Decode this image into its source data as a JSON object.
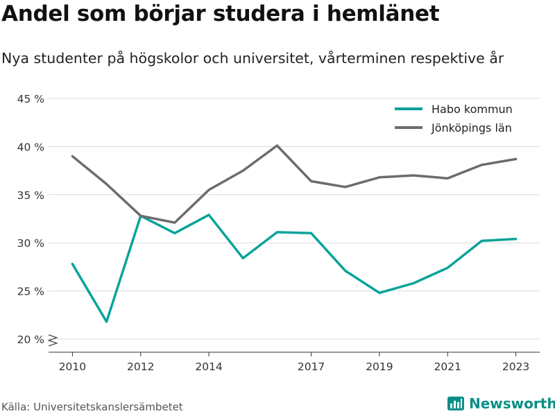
{
  "title": "Andel som börjar studera i hemlänet",
  "subtitle": "Nya studenter på högskolor och universitet, vårterminen respektive år",
  "source": "Källa: Universitetskanslersämbetet",
  "brand": "Newsworthy",
  "colors": {
    "habo": "#0aa39a",
    "jonkoping": "#6b6b72",
    "grid": "#d9d9d9",
    "brand": "#0a8f86"
  },
  "chart_data": {
    "type": "line",
    "x": [
      2010,
      2011,
      2012,
      2013,
      2014,
      2015,
      2016,
      2017,
      2018,
      2019,
      2020,
      2021,
      2022,
      2023
    ],
    "x_ticks": [
      2010,
      2012,
      2014,
      2017,
      2019,
      2021,
      2023
    ],
    "y_ticks": [
      20,
      25,
      30,
      35,
      40,
      45
    ],
    "y_tick_labels": [
      "20 %",
      "25 %",
      "30 %",
      "35 %",
      "40 %",
      "45 %"
    ],
    "ylim": [
      20,
      45
    ],
    "xlim": [
      2009.3,
      2023.7
    ],
    "y_axis_break": true,
    "grid": "horizontal",
    "legend_position": "top-right",
    "series": [
      {
        "name": "Habo kommun",
        "color": "#0aa39a",
        "values": [
          27.8,
          21.8,
          32.8,
          31.0,
          32.9,
          28.4,
          31.1,
          31.0,
          27.1,
          24.8,
          25.8,
          27.4,
          30.2,
          30.4
        ]
      },
      {
        "name": "Jönköpings län",
        "color": "#6b6b72",
        "values": [
          39.0,
          36.1,
          32.8,
          32.1,
          35.5,
          37.5,
          40.1,
          36.4,
          35.8,
          36.8,
          37.0,
          36.7,
          38.1,
          38.7
        ]
      }
    ]
  }
}
